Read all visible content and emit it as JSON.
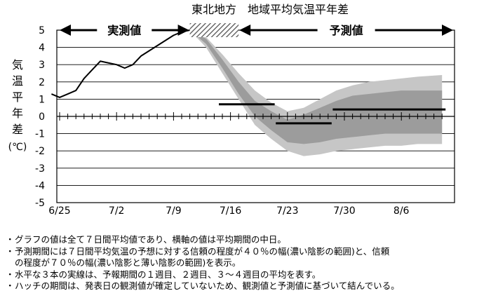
{
  "chart_data": {
    "type": "line",
    "title": "東北地方　地域平均気温平年差",
    "ylabel": "気温平年差（℃）",
    "ylabel_chars": [
      "気",
      "温",
      "平",
      "年",
      "差",
      "(℃)"
    ],
    "ylim": [
      -5,
      5
    ],
    "y_ticks": [
      "5",
      "4",
      "3",
      "2",
      "1",
      "0",
      "-1",
      "-2",
      "-3",
      "-4",
      "-5"
    ],
    "x_tick_labels": [
      {
        "day": 0,
        "label": "6/25"
      },
      {
        "day": 7,
        "label": "7/2"
      },
      {
        "day": 14,
        "label": "7/9"
      },
      {
        "day": 21,
        "label": "7/16"
      },
      {
        "day": 28,
        "label": "7/23"
      },
      {
        "day": 35,
        "label": "7/30"
      },
      {
        "day": 42,
        "label": "8/6"
      }
    ],
    "x_start_date": "6/24",
    "x_end_date": "8/11",
    "grid": true,
    "observed_label": "実測値",
    "forecast_label": "予測値",
    "observed": {
      "dates": [
        "6/24",
        "6/25",
        "6/26",
        "6/27",
        "6/28",
        "6/29",
        "6/30",
        "7/1",
        "7/2",
        "7/3",
        "7/4",
        "7/5",
        "7/6",
        "7/7",
        "7/8",
        "7/9",
        "7/10",
        "7/11"
      ],
      "values": [
        1.3,
        1.1,
        1.3,
        1.5,
        2.2,
        2.7,
        3.2,
        3.1,
        3.0,
        2.8,
        3.0,
        3.5,
        3.8,
        4.1,
        4.4,
        4.7,
        4.9,
        5.0
      ]
    },
    "hatch_period": [
      "7/11",
      "7/17"
    ],
    "forecast_band_70": {
      "dates": [
        "7/11",
        "7/13",
        "7/15",
        "7/17",
        "7/19",
        "7/21",
        "7/23",
        "7/25",
        "7/27",
        "7/29",
        "7/31",
        "8/2",
        "8/4",
        "8/6",
        "8/8",
        "8/11"
      ],
      "upper": [
        5.0,
        4.6,
        3.6,
        2.5,
        1.5,
        0.8,
        0.3,
        0.5,
        1.0,
        1.5,
        1.8,
        2.0,
        2.1,
        2.2,
        2.3,
        2.4
      ],
      "lower": [
        5.0,
        4.0,
        2.5,
        1.0,
        -0.5,
        -1.3,
        -2.0,
        -2.3,
        -2.2,
        -2.0,
        -1.9,
        -1.8,
        -1.7,
        -1.7,
        -1.6,
        -1.6
      ]
    },
    "forecast_band_40": {
      "dates": [
        "7/11",
        "7/13",
        "7/15",
        "7/17",
        "7/19",
        "7/21",
        "7/23",
        "7/25",
        "7/27",
        "7/29",
        "7/31",
        "8/2",
        "8/4",
        "8/6",
        "8/8",
        "8/11"
      ],
      "upper": [
        5.0,
        4.5,
        3.3,
        2.0,
        0.9,
        0.3,
        -0.2,
        0.1,
        0.5,
        0.9,
        1.2,
        1.3,
        1.4,
        1.5,
        1.5,
        1.5
      ],
      "lower": [
        5.0,
        4.2,
        2.8,
        1.3,
        0.0,
        -0.8,
        -1.5,
        -1.6,
        -1.5,
        -1.3,
        -1.2,
        -1.1,
        -1.0,
        -1.0,
        -1.0,
        -1.0
      ]
    },
    "weekly_means": [
      {
        "label": "1週目",
        "start": "7/15",
        "end": "7/21",
        "value": 0.7
      },
      {
        "label": "2週目",
        "start": "7/22",
        "end": "7/28",
        "value": -0.4
      },
      {
        "label": "3～4週目",
        "start": "7/29",
        "end": "8/11",
        "value": 0.4
      }
    ],
    "colors": {
      "band70": "#c6c6c6",
      "band40": "#9c9c9c",
      "observed": "#000000",
      "weekly": "#000000",
      "hatch": "#555555"
    }
  },
  "notes": [
    [
      "グラフの値は全て７日間平均値であり、横軸の値は平均期間の中日。"
    ],
    [
      "予測期間には７日間平均気温の予想に対する信頼の程度が４０％の幅(濃い陰影の範囲)と、信頼",
      "の程度が７０％の幅(濃い陰影と薄い陰影の範囲)を表示。"
    ],
    [
      "水平な３本の実線は、予報期間の１週目、２週目、３～４週目の平均を表す。"
    ],
    [
      "ハッチの期間は、発表日の観測値が確定していないため、観測値と予測値に基づいて結んでいる。"
    ]
  ],
  "bullet": "・"
}
